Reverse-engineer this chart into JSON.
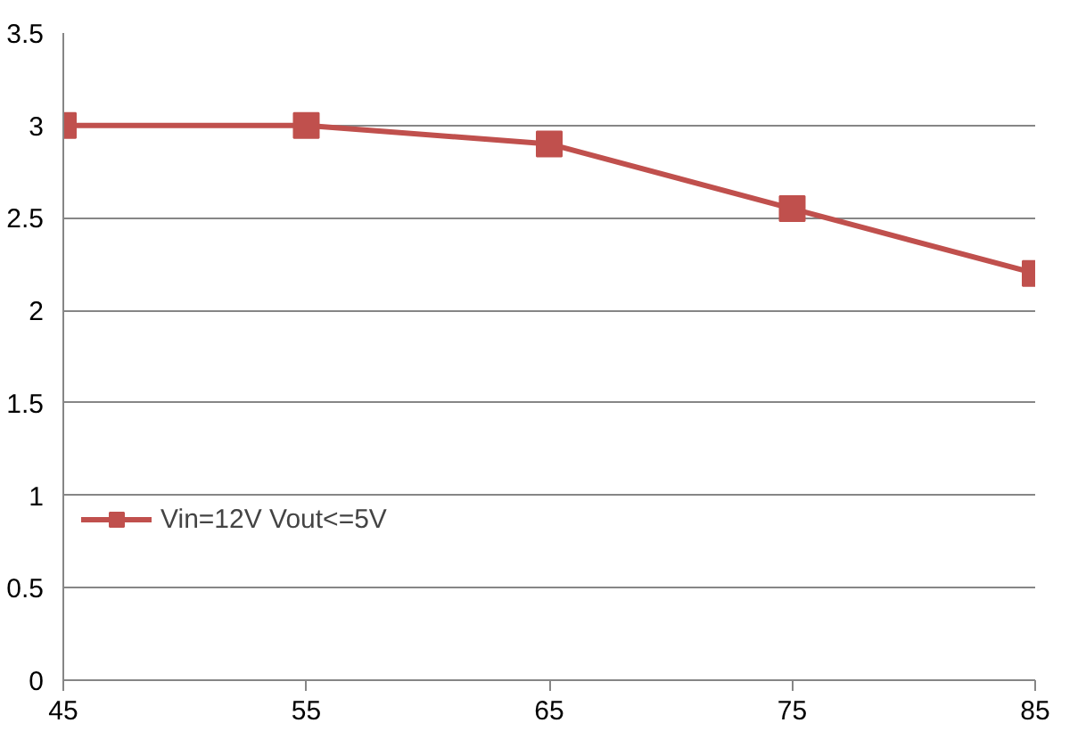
{
  "chart_data": {
    "type": "line",
    "x": [
      45,
      55,
      65,
      75,
      85
    ],
    "series": [
      {
        "name": "Vin=12V Vout<=5V",
        "color": "#c0504d",
        "values": [
          3,
          3,
          2.9,
          2.55,
          2.2
        ]
      }
    ],
    "xlim": [
      45,
      85
    ],
    "xticks": [
      45,
      55,
      65,
      75,
      85
    ],
    "ylim": [
      0,
      3.5
    ],
    "yticks": [
      0,
      0.5,
      1,
      1.5,
      2,
      2.5,
      3,
      3.5
    ],
    "grid": "y",
    "legend": "left",
    "marker": "square",
    "line_style": "solid"
  }
}
